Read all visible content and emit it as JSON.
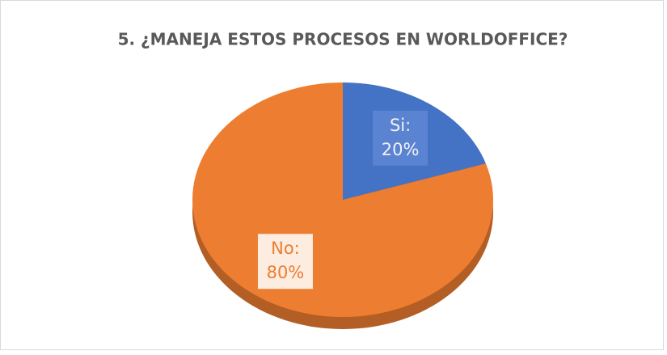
{
  "chart_data": {
    "type": "pie",
    "title": "5. ¿MANEJA ESTOS PROCESOS EN WORLDOFFICE?",
    "categories": [
      "Si:",
      "No:"
    ],
    "values": [
      20,
      80
    ],
    "value_labels": [
      "20%",
      "80%"
    ],
    "colors": [
      "#4472c4",
      "#ed7d31"
    ]
  }
}
